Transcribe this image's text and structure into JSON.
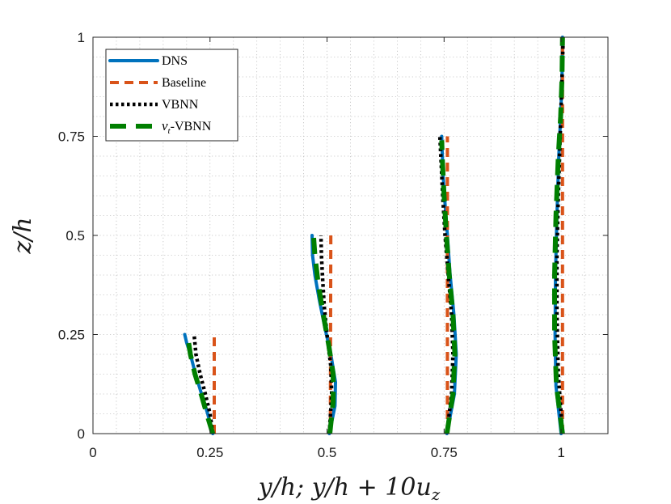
{
  "chart_data": {
    "type": "line",
    "xlabel": "y/h;    y/h + 10u",
    "xlabel_sub": "z",
    "ylabel": "z/h",
    "xlim": [
      0,
      1.1
    ],
    "ylim": [
      0,
      1
    ],
    "xticks": [
      0,
      0.25,
      0.5,
      0.75,
      1
    ],
    "xtick_labels": [
      "0",
      "0.25",
      "0.5",
      "0.75",
      "1"
    ],
    "yticks": [
      0,
      0.25,
      0.5,
      0.75,
      1
    ],
    "ytick_labels": [
      "0",
      "0.25",
      "0.5",
      "0.75",
      "1"
    ],
    "grid": "major and minor, dotted",
    "legend_position": "top-left",
    "series": [
      {
        "name": "DNS",
        "color": "#0072bd",
        "style": "solid",
        "profiles": [
          {
            "x": [
              0.256,
              0.245,
              0.232,
              0.219,
              0.208,
              0.2,
              0.196
            ],
            "y": [
              0.0,
              0.05,
              0.1,
              0.15,
              0.2,
              0.23,
              0.25
            ]
          },
          {
            "x": [
              0.505,
              0.517,
              0.518,
              0.508,
              0.495,
              0.483,
              0.474,
              0.469,
              0.468
            ],
            "y": [
              0.0,
              0.07,
              0.13,
              0.2,
              0.27,
              0.34,
              0.4,
              0.45,
              0.5
            ]
          },
          {
            "x": [
              0.756,
              0.772,
              0.776,
              0.771,
              0.763,
              0.757,
              0.752,
              0.748,
              0.746,
              0.745
            ],
            "y": [
              0.0,
              0.1,
              0.2,
              0.3,
              0.4,
              0.5,
              0.58,
              0.65,
              0.71,
              0.75
            ]
          },
          {
            "x": [
              1.0,
              0.989,
              0.987,
              0.988,
              0.991,
              0.995,
              0.999,
              1.002,
              1.003
            ],
            "y": [
              0.0,
              0.12,
              0.25,
              0.4,
              0.55,
              0.7,
              0.8,
              0.9,
              1.0
            ]
          }
        ]
      },
      {
        "name": "Baseline",
        "color": "#d95319",
        "style": "dashed",
        "profiles": [
          {
            "x": [
              0.259,
              0.259
            ],
            "y": [
              0.0,
              0.25
            ]
          },
          {
            "x": [
              0.507,
              0.508
            ],
            "y": [
              0.0,
              0.5
            ]
          },
          {
            "x": [
              0.757,
              0.757
            ],
            "y": [
              0.0,
              0.75
            ]
          },
          {
            "x": [
              1.003,
              1.003
            ],
            "y": [
              0.0,
              1.0
            ]
          }
        ]
      },
      {
        "name": "VBNN",
        "color": "#000000",
        "style": "dotted",
        "profiles": [
          {
            "x": [
              0.256,
              0.25,
              0.24,
              0.229,
              0.22,
              0.216
            ],
            "y": [
              0.0,
              0.05,
              0.1,
              0.15,
              0.2,
              0.25
            ]
          },
          {
            "x": [
              0.505,
              0.51,
              0.508,
              0.5,
              0.494,
              0.49,
              0.488,
              0.487
            ],
            "y": [
              0.0,
              0.1,
              0.17,
              0.25,
              0.32,
              0.4,
              0.45,
              0.5
            ]
          },
          {
            "x": [
              0.756,
              0.766,
              0.769,
              0.766,
              0.759,
              0.752,
              0.747,
              0.743,
              0.741
            ],
            "y": [
              0.0,
              0.1,
              0.2,
              0.3,
              0.4,
              0.5,
              0.6,
              0.7,
              0.75
            ]
          },
          {
            "x": [
              1.003,
              0.994,
              0.991,
              0.991,
              0.994,
              0.998,
              1.002,
              1.004
            ],
            "y": [
              0.0,
              0.15,
              0.3,
              0.45,
              0.6,
              0.75,
              0.9,
              0.98
            ]
          }
        ]
      },
      {
        "name": "νt-VBNN",
        "name_base": "ν",
        "name_sub": "t",
        "name_rest": "-VBNN",
        "color": "#007f00",
        "style": "long-dashed",
        "profiles": [
          {
            "x": [
              0.256,
              0.243,
              0.231,
              0.218,
              0.208,
              0.203
            ],
            "y": [
              0.0,
              0.05,
              0.1,
              0.15,
              0.2,
              0.24
            ]
          },
          {
            "x": [
              0.506,
              0.513,
              0.513,
              0.504,
              0.492,
              0.481,
              0.474,
              0.471
            ],
            "y": [
              0.0,
              0.08,
              0.15,
              0.22,
              0.3,
              0.38,
              0.45,
              0.5
            ]
          },
          {
            "x": [
              0.756,
              0.769,
              0.773,
              0.769,
              0.761,
              0.755,
              0.75,
              0.746,
              0.745
            ],
            "y": [
              0.0,
              0.1,
              0.2,
              0.3,
              0.4,
              0.5,
              0.6,
              0.7,
              0.74
            ]
          },
          {
            "x": [
              1.003,
              0.99,
              0.986,
              0.986,
              0.989,
              0.994,
              0.999,
              1.002,
              1.003
            ],
            "y": [
              0.0,
              0.12,
              0.25,
              0.4,
              0.55,
              0.7,
              0.8,
              0.9,
              1.0
            ]
          }
        ]
      }
    ]
  }
}
